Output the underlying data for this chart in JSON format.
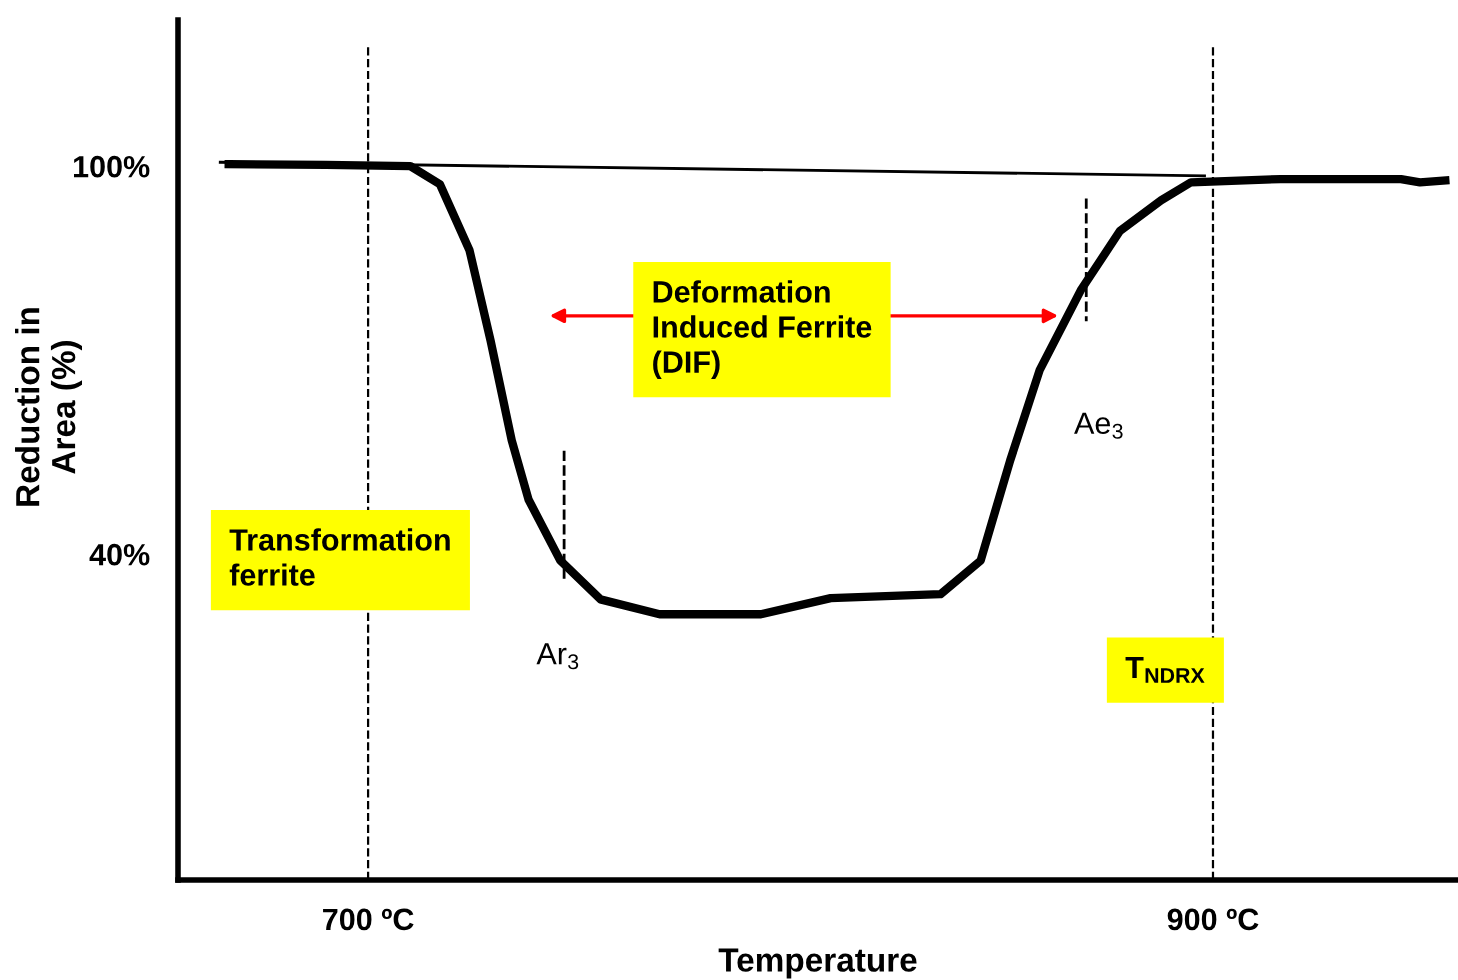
{
  "chart_data": {
    "type": "line",
    "xlabel": "Temperature",
    "ylabel": "Reduction in\nArea (%)",
    "xlim": [
      655,
      958
    ],
    "ylim": [
      -10.4,
      122.6
    ],
    "xticks": [
      {
        "value": 700,
        "label": "700 ºC"
      },
      {
        "value": 900,
        "label": "900 ºC"
      }
    ],
    "yticks": [
      {
        "value": 100,
        "label": "100%"
      },
      {
        "value": 40,
        "label": "40%"
      }
    ],
    "grid": false,
    "legend": false,
    "marker": "none",
    "line_style": "solid",
    "series": [
      {
        "color": "#000000",
        "x": [
          667,
          690,
          710,
          717,
          724,
          729,
          734,
          738,
          745.5,
          755,
          769,
          793,
          809.5,
          835.5,
          845,
          852,
          859,
          868.7,
          878,
          887.7,
          894.8,
          916,
          944.5,
          949,
          955
        ],
        "values": [
          100.3,
          100.2,
          100,
          97.2,
          87,
          73,
          57.6,
          48.4,
          39,
          33,
          30.7,
          30.7,
          33.2,
          33.8,
          39,
          54.5,
          68.5,
          80.8,
          90,
          94.7,
          97.5,
          98,
          98,
          97.5,
          97.8
        ]
      },
      {
        "color": "#000000",
        "x": [
          665,
          898
        ],
        "values": [
          100.6,
          98.5
        ]
      },
      {
        "color": "#000000",
        "line_style": "dashed",
        "x": [
          746.4,
          746.4
        ],
        "values": [
          56,
          36
        ]
      },
      {
        "color": "#000000",
        "line_style": "dashed",
        "x": [
          870,
          870
        ],
        "values": [
          95,
          76
        ]
      }
    ],
    "ref_lines": [
      {
        "axis": "x",
        "value": 700,
        "color": "#000000",
        "line_style": "dashed"
      },
      {
        "axis": "x",
        "value": 900,
        "color": "#000000",
        "line_style": "dashed"
      }
    ],
    "annotations": [
      "Transformation\nferrite",
      "Deformation\nInduced Ferrite\n(DIF)",
      "T$_{NDRX}$",
      "Ar$_{3}$",
      "Ae$_{3}$"
    ]
  }
}
